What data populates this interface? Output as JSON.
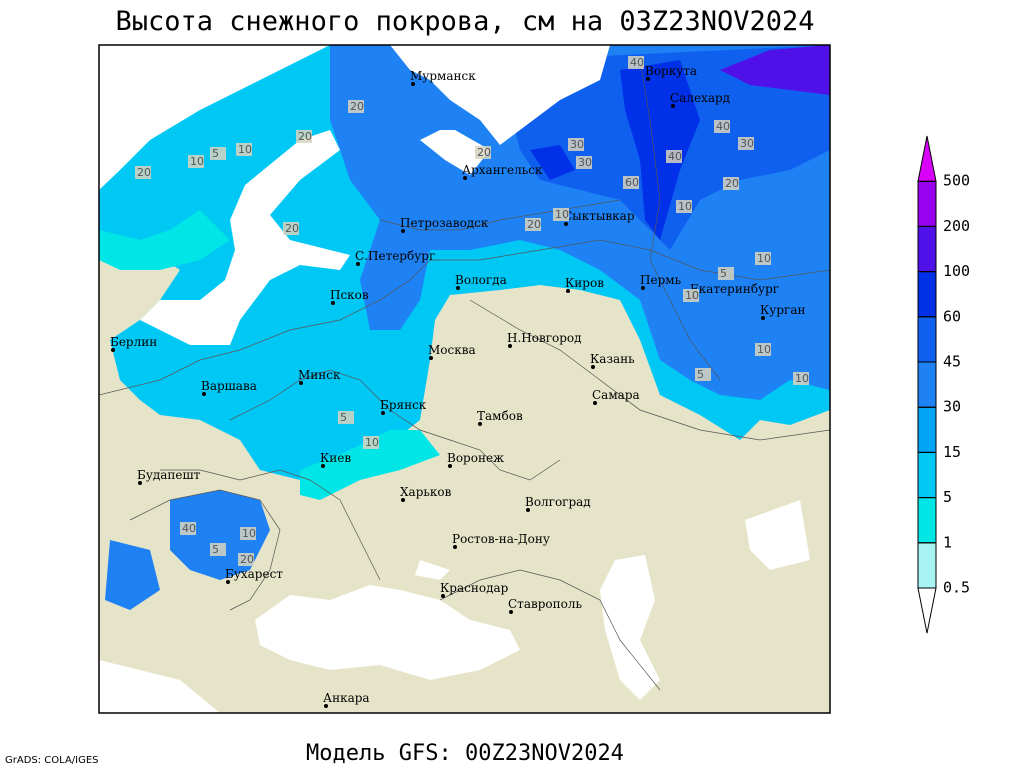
{
  "title": "Высота снежного покрова, см на 03Z23NOV2024",
  "subtitle": "Модель GFS: 00Z23NOV2024",
  "credit": "GrADS: COLA/IGES",
  "cities": [
    "Мурманск",
    "Воркута",
    "Салехард",
    "Архангельск",
    "Сыктывкар",
    "Петрозаводск",
    "С.Петербург",
    "Вологда",
    "Киров",
    "Пермь",
    "Екатеринбург",
    "Курган",
    "Псков",
    "Берлин",
    "Минск",
    "Москва",
    "Н.Новгород",
    "Казань",
    "Варшава",
    "Брянск",
    "Самара",
    "Тамбов",
    "Киев",
    "Воронеж",
    "Будапешт",
    "Харьков",
    "Волгоград",
    "Ростов-на-Дону",
    "Бухарест",
    "Краснодар",
    "Ставрополь",
    "Анкара"
  ],
  "contour_labels": [
    "20",
    "20",
    "10",
    "5",
    "10",
    "20",
    "20",
    "20",
    "30",
    "30",
    "40",
    "40",
    "40",
    "30",
    "20",
    "10",
    "10",
    "20",
    "10",
    "5",
    "10",
    "10",
    "5",
    "10",
    "5",
    "10",
    "10",
    "5",
    "40",
    "20",
    "60"
  ],
  "legend": {
    "levels": [
      0.5,
      1,
      5,
      15,
      30,
      45,
      60,
      100,
      200,
      500
    ],
    "colors": [
      "#ffffff",
      "#a8f4f4",
      "#00e6e6",
      "#00c8f5",
      "#00a5f5",
      "#1e82f5",
      "#1060f0",
      "#0030e8",
      "#5010e8",
      "#9800f0",
      "#d800f8"
    ]
  }
}
